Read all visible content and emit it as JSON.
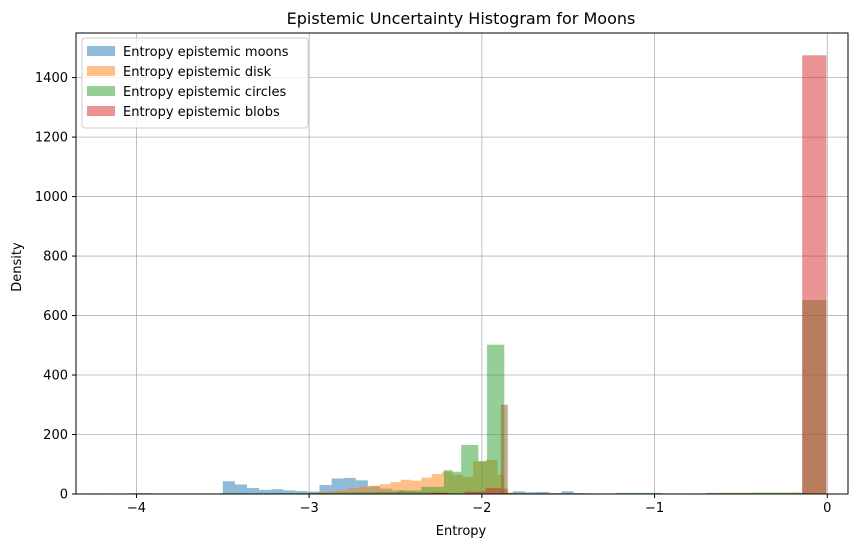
{
  "chart_data": {
    "type": "bar",
    "title": "Epistemic Uncertainty Histogram for Moons",
    "xlabel": "Entropy",
    "ylabel": "Density",
    "xlim": [
      -4.35,
      0.12
    ],
    "ylim": [
      0,
      1550
    ],
    "xticks": [
      -4,
      -3,
      -2,
      -1,
      0
    ],
    "xtick_labels": [
      "−4",
      "−3",
      "−2",
      "−1",
      "0"
    ],
    "yticks": [
      0,
      200,
      400,
      600,
      800,
      1000,
      1200,
      1400
    ],
    "ytick_labels": [
      "0",
      "200",
      "400",
      "600",
      "800",
      "1000",
      "1200",
      "1400"
    ],
    "grid": true,
    "legend_position": "top-left",
    "series": [
      {
        "name": "Entropy epistemic moons",
        "color": "#1f77b4",
        "bins": [
          [
            -3.5,
            -3.43,
            43
          ],
          [
            -3.43,
            -3.36,
            32
          ],
          [
            -3.36,
            -3.29,
            20
          ],
          [
            -3.29,
            -3.22,
            14
          ],
          [
            -3.22,
            -3.15,
            16
          ],
          [
            -3.15,
            -3.08,
            12
          ],
          [
            -3.08,
            -3.01,
            10
          ],
          [
            -3.01,
            -2.94,
            8
          ],
          [
            -2.94,
            -2.87,
            30
          ],
          [
            -2.87,
            -2.8,
            52
          ],
          [
            -2.8,
            -2.73,
            54
          ],
          [
            -2.73,
            -2.66,
            46
          ],
          [
            -2.66,
            -2.59,
            26
          ],
          [
            -2.59,
            -2.52,
            18
          ],
          [
            -2.52,
            -2.45,
            12
          ],
          [
            -2.45,
            -2.38,
            8
          ],
          [
            -2.38,
            -2.31,
            6
          ],
          [
            -2.31,
            -2.24,
            4
          ],
          [
            -2.24,
            -2.17,
            3
          ],
          [
            -2.17,
            -2.1,
            2
          ],
          [
            -2.1,
            -2.03,
            2
          ],
          [
            -2.03,
            -1.96,
            2
          ],
          [
            -1.96,
            -1.89,
            2
          ],
          [
            -1.89,
            -1.82,
            4
          ],
          [
            -1.82,
            -1.75,
            9
          ],
          [
            -1.75,
            -1.68,
            6
          ],
          [
            -1.68,
            -1.61,
            7
          ],
          [
            -1.61,
            -1.54,
            3
          ],
          [
            -1.54,
            -1.47,
            9
          ],
          [
            -1.47,
            -1.4,
            3
          ],
          [
            -1.4,
            -1.33,
            2
          ]
        ]
      },
      {
        "name": "Entropy epistemic disk",
        "color": "#ff7f0e",
        "bins": [
          [
            -4.3,
            -4.22,
            2
          ],
          [
            -4.22,
            -4.14,
            2
          ],
          [
            -3.8,
            -3.7,
            1
          ],
          [
            -3.7,
            -3.6,
            1
          ],
          [
            -2.95,
            -2.89,
            8
          ],
          [
            -2.89,
            -2.83,
            10
          ],
          [
            -2.83,
            -2.77,
            13
          ],
          [
            -2.77,
            -2.71,
            20
          ],
          [
            -2.71,
            -2.65,
            25
          ],
          [
            -2.65,
            -2.59,
            28
          ],
          [
            -2.59,
            -2.53,
            33
          ],
          [
            -2.53,
            -2.47,
            40
          ],
          [
            -2.47,
            -2.41,
            48
          ],
          [
            -2.41,
            -2.35,
            45
          ],
          [
            -2.35,
            -2.29,
            55
          ],
          [
            -2.29,
            -2.23,
            67
          ],
          [
            -2.23,
            -2.17,
            75
          ],
          [
            -2.17,
            -2.11,
            65
          ],
          [
            -2.11,
            -2.05,
            58
          ],
          [
            -2.05,
            -1.98,
            110
          ],
          [
            -1.98,
            -1.91,
            115
          ],
          [
            -1.91,
            -1.87,
            65
          ],
          [
            -1.87,
            -1.8,
            5
          ],
          [
            -1.8,
            -1.6,
            2
          ],
          [
            -1.6,
            -1.4,
            2
          ],
          [
            -1.4,
            -1.2,
            1
          ],
          [
            -0.8,
            -0.6,
            2
          ],
          [
            -0.6,
            -0.4,
            3
          ],
          [
            -0.4,
            -0.2,
            3
          ],
          [
            -0.2,
            -0.15,
            5
          ]
        ]
      },
      {
        "name": "Entropy epistemic circles",
        "color": "#2ca02c",
        "bins": [
          [
            -4.3,
            -4.17,
            2
          ],
          [
            -4.17,
            -4.04,
            1
          ],
          [
            -4.04,
            -3.91,
            3
          ],
          [
            -3.91,
            -3.78,
            2
          ],
          [
            -3.78,
            -3.65,
            2
          ],
          [
            -3.65,
            -3.52,
            2
          ],
          [
            -3.52,
            -3.39,
            3
          ],
          [
            -3.39,
            -3.26,
            2
          ],
          [
            -3.26,
            -3.13,
            3
          ],
          [
            -3.13,
            -3.0,
            3
          ],
          [
            -3.0,
            -2.87,
            4
          ],
          [
            -2.87,
            -2.74,
            5
          ],
          [
            -2.74,
            -2.61,
            6
          ],
          [
            -2.61,
            -2.48,
            7
          ],
          [
            -2.48,
            -2.35,
            12
          ],
          [
            -2.35,
            -2.22,
            24
          ],
          [
            -2.22,
            -2.17,
            80
          ],
          [
            -2.17,
            -2.12,
            75
          ],
          [
            -2.12,
            -2.02,
            165
          ],
          [
            -2.02,
            -1.97,
            110
          ],
          [
            -1.97,
            -1.87,
            502
          ],
          [
            -1.87,
            -1.74,
            3
          ],
          [
            -1.74,
            -1.48,
            2
          ],
          [
            -1.48,
            -1.22,
            2
          ],
          [
            -1.22,
            -0.96,
            4
          ],
          [
            -0.96,
            -0.7,
            2
          ],
          [
            -0.7,
            -0.44,
            4
          ],
          [
            -0.44,
            -0.18,
            5
          ],
          [
            -0.18,
            -0.1,
            4
          ]
        ]
      },
      {
        "name": "Entropy epistemic blobs",
        "color": "#d62728",
        "bins": [
          [
            -0.145,
            -0.005,
            1475
          ],
          [
            -1.98,
            -1.89,
            20
          ],
          [
            -1.89,
            -1.85,
            18
          ],
          [
            -2.3,
            -2.2,
            5
          ],
          [
            -2.1,
            -1.98,
            8
          ]
        ]
      }
    ],
    "overlap_bins": [
      [
        -1.89,
        -1.85,
        300
      ],
      [
        -0.145,
        -0.005,
        652
      ]
    ]
  }
}
